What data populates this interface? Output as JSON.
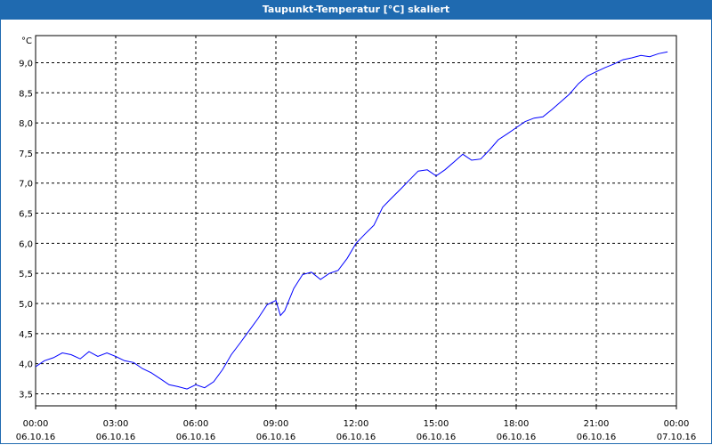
{
  "window": {
    "title": "Taupunkt-Temperatur [°C] skaliert"
  },
  "colors": {
    "title_bar": "#1f6ab0",
    "line": "#0000ff",
    "grid": "#000000"
  },
  "chart_data": {
    "type": "line",
    "title": "Taupunkt-Temperatur [°C] skaliert",
    "ylabel": "°C",
    "xlabel": "",
    "grid": true,
    "grid_style": "dashed",
    "ylim": [
      3.3,
      9.45
    ],
    "y_ticks": [
      "9,0",
      "8,5",
      "8,0",
      "7,5",
      "7,0",
      "6,5",
      "6,0",
      "5,5",
      "5,0",
      "4,5",
      "4,0",
      "3,5"
    ],
    "y_tick_values": [
      9.0,
      8.5,
      8.0,
      7.5,
      7.0,
      6.5,
      6.0,
      5.5,
      5.0,
      4.5,
      4.0,
      3.5
    ],
    "x_tick_hours": [
      0,
      3,
      6,
      9,
      12,
      15,
      18,
      21,
      24
    ],
    "x_ticks": [
      {
        "time": "00:00",
        "date": "06.10.16"
      },
      {
        "time": "03:00",
        "date": "06.10.16"
      },
      {
        "time": "06:00",
        "date": "06.10.16"
      },
      {
        "time": "09:00",
        "date": "06.10.16"
      },
      {
        "time": "12:00",
        "date": "06.10.16"
      },
      {
        "time": "15:00",
        "date": "06.10.16"
      },
      {
        "time": "18:00",
        "date": "06.10.16"
      },
      {
        "time": "21:00",
        "date": "06.10.16"
      },
      {
        "time": "00:00",
        "date": "07.10.16"
      }
    ],
    "series": [
      {
        "x": [
          0,
          0.33,
          0.67,
          1.0,
          1.33,
          1.67,
          2.0,
          2.33,
          2.67,
          3.0,
          3.33,
          3.67,
          4.0,
          4.33,
          4.67,
          5.0,
          5.33,
          5.67,
          6.0,
          6.33,
          6.67,
          7.0,
          7.33,
          7.67,
          8.0,
          8.33,
          8.67,
          9.0,
          9.17,
          9.33,
          9.67,
          10.0,
          10.33,
          10.67,
          11.0,
          11.33,
          11.67,
          12.0,
          12.33,
          12.67,
          13.0,
          13.33,
          13.67,
          14.0,
          14.33,
          14.67,
          15.0,
          15.33,
          15.67,
          16.0,
          16.33,
          16.67,
          17.0,
          17.33,
          17.67,
          18.0,
          18.33,
          18.67,
          19.0,
          19.33,
          19.67,
          20.0,
          20.33,
          20.67,
          21.0,
          21.33,
          21.67,
          22.0,
          22.33,
          22.67,
          23.0,
          23.33,
          23.67
        ],
        "values": [
          3.95,
          4.05,
          4.1,
          4.18,
          4.15,
          4.08,
          4.2,
          4.12,
          4.18,
          4.12,
          4.05,
          4.02,
          3.92,
          3.85,
          3.75,
          3.65,
          3.62,
          3.58,
          3.65,
          3.6,
          3.7,
          3.9,
          4.15,
          4.35,
          4.55,
          4.75,
          4.98,
          5.05,
          4.8,
          4.88,
          5.25,
          5.48,
          5.52,
          5.4,
          5.5,
          5.55,
          5.75,
          6.0,
          6.15,
          6.3,
          6.6,
          6.75,
          6.9,
          7.05,
          7.2,
          7.22,
          7.12,
          7.22,
          7.35,
          7.48,
          7.38,
          7.4,
          7.55,
          7.72,
          7.82,
          7.92,
          8.02,
          8.08,
          8.1,
          8.22,
          8.35,
          8.48,
          8.65,
          8.78,
          8.85,
          8.92,
          8.98,
          9.05,
          9.08,
          9.12,
          9.1,
          9.15,
          9.18
        ]
      }
    ]
  }
}
